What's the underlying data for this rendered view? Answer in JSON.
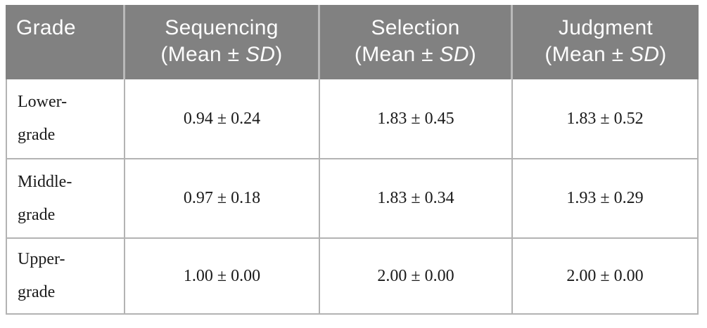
{
  "table": {
    "header": {
      "columns": [
        {
          "title": "Grade"
        },
        {
          "title": "Sequencing",
          "sub_pre": "(Mean ",
          "sub_pm": "± ",
          "sub_sd": "SD",
          "sub_post": ")"
        },
        {
          "title": "Selection",
          "sub_pre": "(Mean ",
          "sub_pm": "± ",
          "sub_sd": "SD",
          "sub_post": ")"
        },
        {
          "title": "Judgment",
          "sub_pre": "(Mean ",
          "sub_pm": "± ",
          "sub_sd": "SD",
          "sub_post": ")"
        }
      ]
    },
    "rows": [
      {
        "grade_line1": "Lower-",
        "grade_line2": "grade",
        "values": [
          "0.94 ± 0.24",
          "1.83 ± 0.45",
          "1.83 ± 0.52"
        ]
      },
      {
        "grade_line1": "Middle-",
        "grade_line2": "grade",
        "values": [
          "0.97 ± 0.18",
          "1.83 ± 0.34",
          "1.93 ± 0.29"
        ]
      },
      {
        "grade_line1": "Upper-",
        "grade_line2": "grade",
        "values": [
          "1.00 ± 0.00",
          "2.00 ± 0.00",
          "2.00 ± 0.00"
        ]
      }
    ],
    "colors": {
      "header_bg": "#818181",
      "header_text": "#fdfdfd",
      "header_divider": "#b9b9b9",
      "body_border": "#b3b3b3",
      "body_text": "#1a1a1a",
      "page_bg": "#ffffff"
    }
  }
}
